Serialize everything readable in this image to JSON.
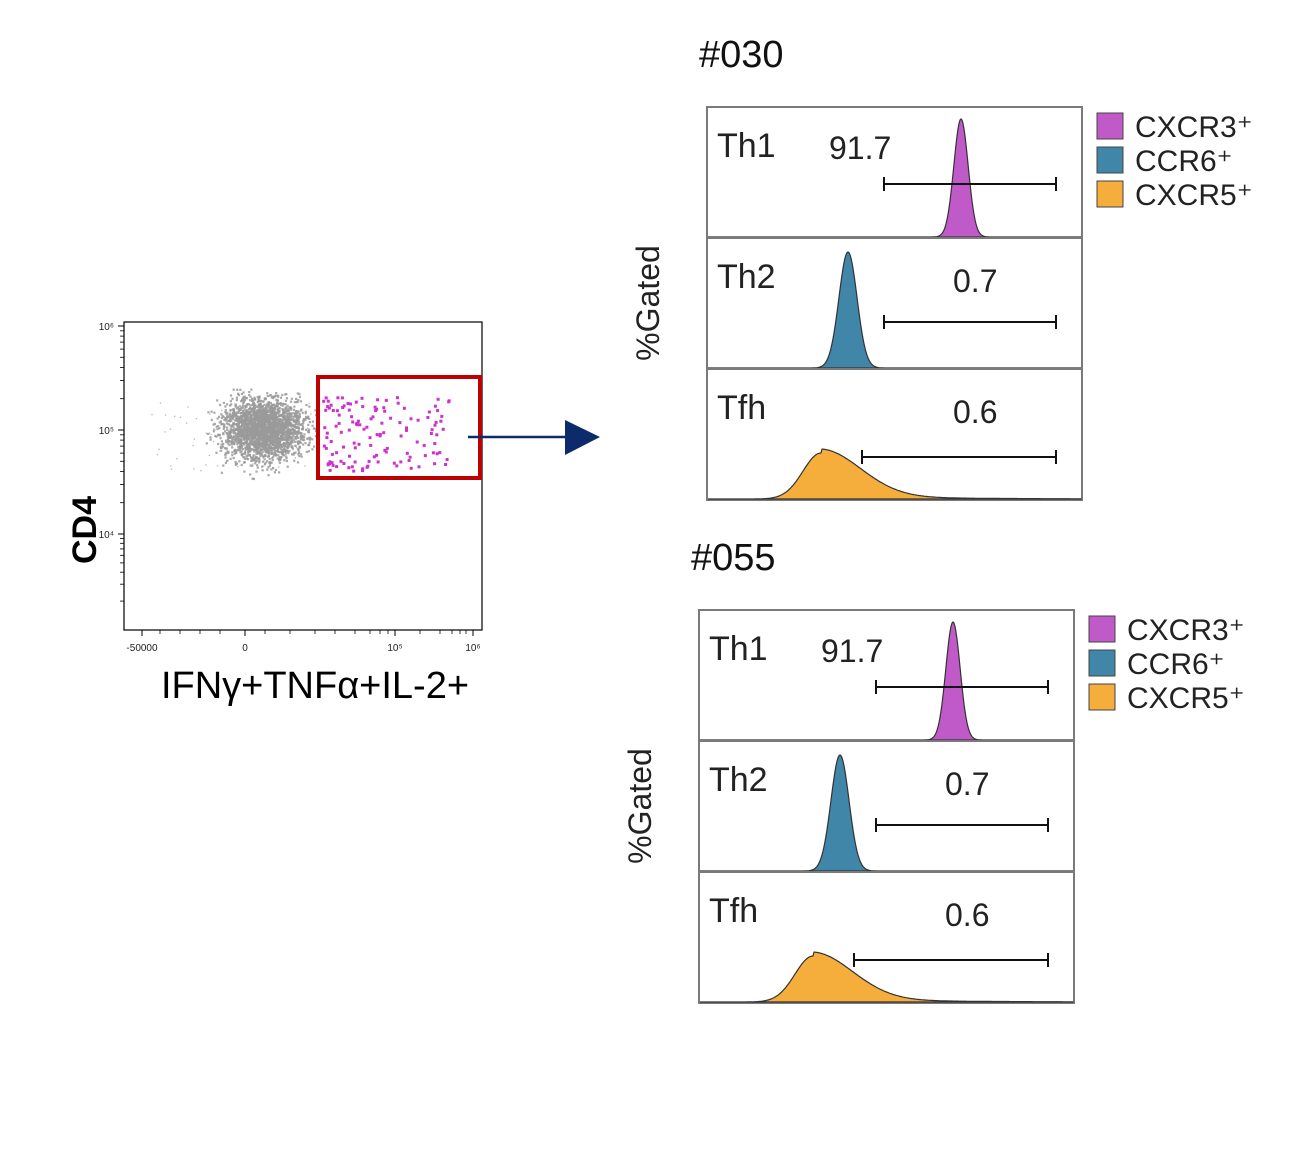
{
  "colors": {
    "gate": "#c00000",
    "arrow": "#0d2a6b",
    "events_main": "#9a9a9a",
    "events_gated": "#cc33cc",
    "cxcr3": "#c05ac8",
    "ccr6": "#3f86a8",
    "cxcr5": "#f5ad3c"
  },
  "chart_data": [
    {
      "type": "scatter",
      "xlabel": "IFNγ+TNFα+IL-2+",
      "ylabel": "CD4",
      "x_ticks": [
        "-50000",
        "0",
        "10⁵",
        "10⁶"
      ],
      "y_ticks": [
        "10⁶",
        "10⁵",
        "10⁴"
      ],
      "x_scale": "biexponential",
      "y_scale": "log",
      "gate": "IFNγ+TNFα+IL-2+ positive (rectangle)",
      "populations": [
        {
          "name": "ungated",
          "color": "#9a9a9a"
        },
        {
          "name": "gated",
          "color": "#cc33cc"
        }
      ]
    },
    {
      "type": "histogram",
      "title": "#030",
      "ylabel": "%Gated",
      "legend": [
        {
          "label": "CXCR3⁺",
          "color": "#c05ac8"
        },
        {
          "label": "CCR6⁺",
          "color": "#3f86a8"
        },
        {
          "label": "CXCR5⁺",
          "color": "#f5ad3c"
        }
      ],
      "panels": [
        {
          "label": "Th1",
          "value": "91.7",
          "color": "#c05ac8"
        },
        {
          "label": "Th2",
          "value": "0.7",
          "color": "#3f86a8"
        },
        {
          "label": "Tfh",
          "value": "0.6",
          "color": "#f5ad3c"
        }
      ]
    },
    {
      "type": "histogram",
      "title": "#055",
      "ylabel": "%Gated",
      "legend": [
        {
          "label": "CXCR3⁺",
          "color": "#c05ac8"
        },
        {
          "label": "CCR6⁺",
          "color": "#3f86a8"
        },
        {
          "label": "CXCR5⁺",
          "color": "#f5ad3c"
        }
      ],
      "panels": [
        {
          "label": "Th1",
          "value": "91.7",
          "color": "#c05ac8"
        },
        {
          "label": "Th2",
          "value": "0.7",
          "color": "#3f86a8"
        },
        {
          "label": "Tfh",
          "value": "0.6",
          "color": "#f5ad3c"
        }
      ]
    }
  ]
}
